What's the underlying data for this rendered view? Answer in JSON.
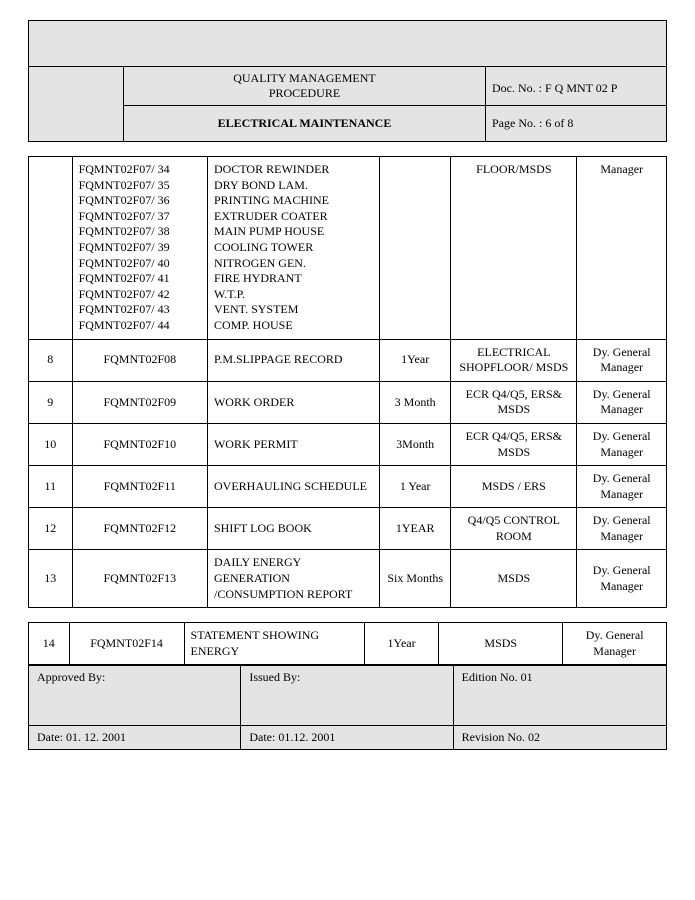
{
  "header": {
    "title_l1": "QUALITY MANAGEMENT",
    "title_l2": "PROCEDURE",
    "subtitle": "ELECTRICAL MAINTENANCE",
    "doc_no_label": "Doc. No. : F Q MNT 02  P",
    "page_no_label": "Page No.   :     6  of  8"
  },
  "first_row": {
    "codes": [
      "FQMNT02F07/ 34",
      "FQMNT02F07/ 35",
      "FQMNT02F07/ 36",
      "FQMNT02F07/ 37",
      "FQMNT02F07/ 38",
      "FQMNT02F07/ 39",
      "FQMNT02F07/ 40",
      "FQMNT02F07/ 41",
      "FQMNT02F07/ 42",
      "FQMNT02F07/ 43",
      "FQMNT02F07/ 44"
    ],
    "descs": [
      "DOCTOR REWINDER",
      "DRY BOND LAM.",
      "PRINTING MACHINE",
      "EXTRUDER COATER",
      "MAIN PUMP HOUSE",
      "COOLING TOWER",
      "NITROGEN GEN.",
      "FIRE HYDRANT",
      "W.T.P.",
      "VENT. SYSTEM",
      "COMP. HOUSE"
    ],
    "loc": "FLOOR/MSDS",
    "resp": "Manager"
  },
  "rows": [
    {
      "no": "8",
      "code": "FQMNT02F08",
      "desc": "P.M.SLIPPAGE RECORD",
      "period": "1Year",
      "loc": "ELECTRICAL SHOPFLOOR/ MSDS",
      "resp": "Dy. General Manager"
    },
    {
      "no": "9",
      "code": "FQMNT02F09",
      "desc": "WORK ORDER",
      "period": "3 Month",
      "loc": "ECR Q4/Q5, ERS& MSDS",
      "resp": "Dy. General Manager"
    },
    {
      "no": "10",
      "code": "FQMNT02F10",
      "desc": "WORK PERMIT",
      "period": "3Month",
      "loc": "ECR Q4/Q5, ERS& MSDS",
      "resp": "Dy. General Manager"
    },
    {
      "no": "11",
      "code": "FQMNT02F11",
      "desc": "OVERHAULING SCHEDULE",
      "period": "1 Year",
      "loc": "MSDS / ERS",
      "resp": "Dy. General Manager"
    },
    {
      "no": "12",
      "code": "FQMNT02F12",
      "desc": "SHIFT LOG BOOK",
      "period": "1YEAR",
      "loc": "Q4/Q5 CONTROL ROOM",
      "resp": "Dy. General Manager"
    },
    {
      "no": "13",
      "code": "FQMNT02F13",
      "desc": "DAILY ENERGY GENERATION /CONSUMPTION REPORT",
      "period": "Six Months",
      "loc": "MSDS",
      "resp": "Dy. General Manager"
    }
  ],
  "sep_row": {
    "no": "14",
    "code": "FQMNT02F14",
    "desc": "STATEMENT SHOWING ENERGY",
    "period": "1Year",
    "loc": "MSDS",
    "resp": "Dy. General Manager"
  },
  "footer": {
    "approved_by": "Approved By:",
    "issued_by": "Issued By:",
    "edition": "Edition No. 01",
    "date1": "Date: 01. 12. 2001",
    "date2": "Date: 01.12. 2001",
    "revision": "Revision No. 02"
  }
}
